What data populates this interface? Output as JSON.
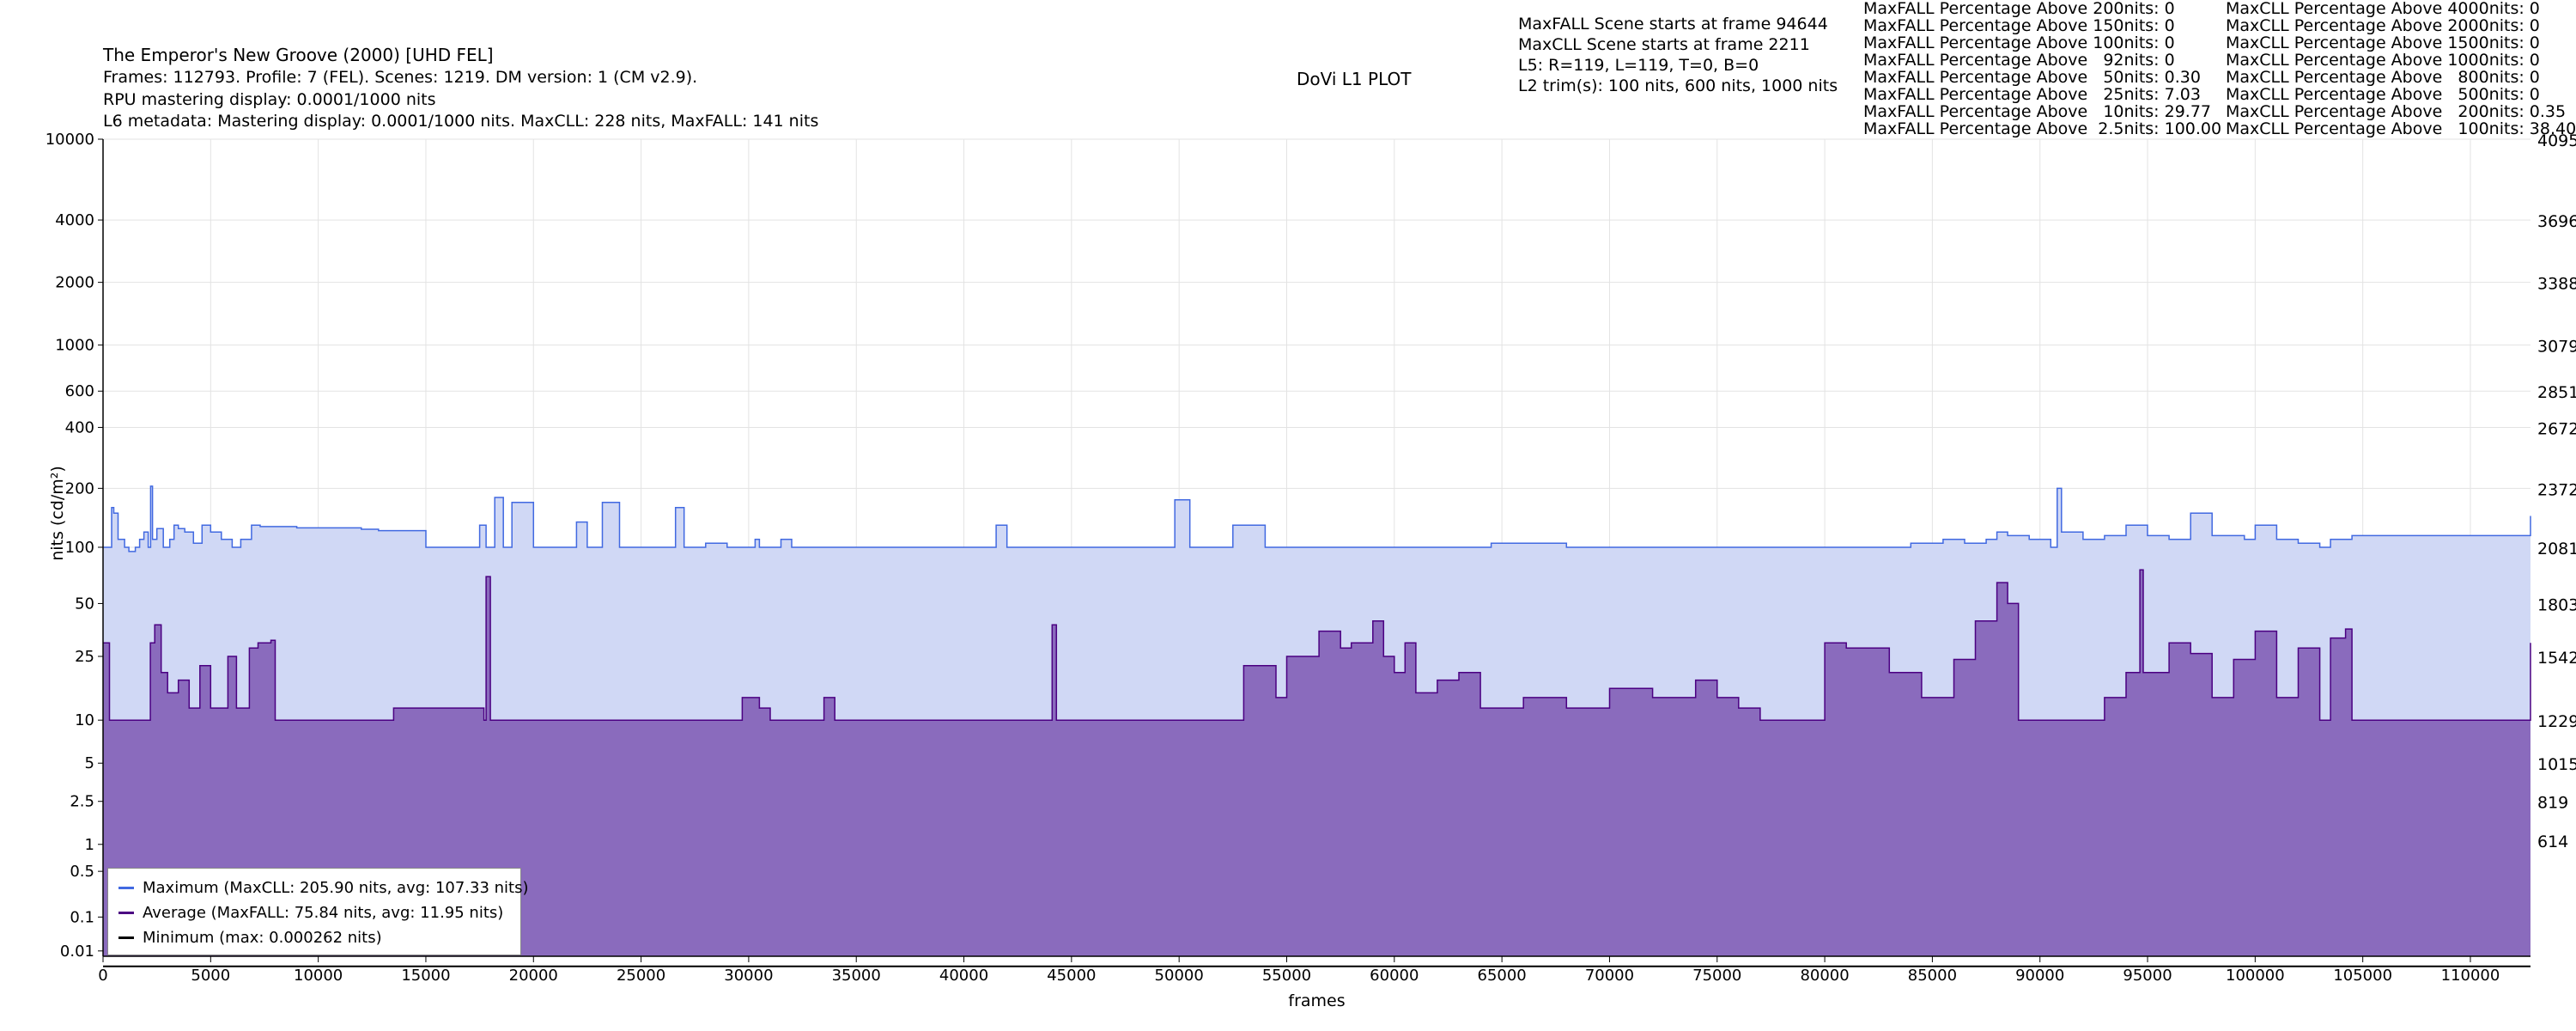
{
  "header": {
    "title": "The Emperor's New Groove (2000) [UHD FEL]",
    "info_line": "Frames: 112793. Profile: 7 (FEL). Scenes: 1219. DM version: 1 (CM v2.9).",
    "rpu_line": "RPU mastering display: 0.0001/1000 nits",
    "l6_line": "L6 metadata: Mastering display: 0.0001/1000 nits. MaxCLL: 228 nits, MaxFALL: 141 nits",
    "plot_name": "DoVi L1 PLOT",
    "scene_lines": [
      "MaxFALL Scene starts at frame 94644",
      "MaxCLL Scene starts at frame 2211",
      "L5: R=119, L=119, T=0, B=0",
      "L2 trim(s): 100 nits, 600 nits, 1000 nits"
    ],
    "maxfall_stats": [
      "MaxFALL Percentage Above 200nits: 0",
      "MaxFALL Percentage Above 150nits: 0",
      "MaxFALL Percentage Above 100nits: 0",
      "MaxFALL Percentage Above   92nits: 0",
      "MaxFALL Percentage Above   50nits: 0.30",
      "MaxFALL Percentage Above   25nits: 7.03",
      "MaxFALL Percentage Above   10nits: 29.77",
      "MaxFALL Percentage Above  2.5nits: 100.00"
    ],
    "maxcll_stats": [
      "MaxCLL Percentage Above 4000nits: 0",
      "MaxCLL Percentage Above 2000nits: 0",
      "MaxCLL Percentage Above 1500nits: 0",
      "MaxCLL Percentage Above 1000nits: 0",
      "MaxCLL Percentage Above   800nits: 0",
      "MaxCLL Percentage Above   500nits: 0",
      "MaxCLL Percentage Above   200nits: 0.35",
      "MaxCLL Percentage Above   100nits: 38.40"
    ]
  },
  "legend": {
    "maximum": "Maximum (MaxCLL: 205.90 nits, avg: 107.33 nits)",
    "average": "Average (MaxFALL: 75.84 nits, avg: 11.95 nits)",
    "minimum": "Minimum (max: 0.000262 nits)"
  },
  "colors": {
    "max_line": "#4169e1",
    "max_fill": "#d0d8f5",
    "avg_line": "#4b0082",
    "avg_fill": "#8a6bbd",
    "min_line": "#000000",
    "grid": "#e3e3e3"
  },
  "chart_data": {
    "type": "area",
    "title": "DoVi L1 PLOT",
    "xlabel": "frames",
    "ylabel": "nits (cd/m²)",
    "xlim": [
      0,
      112793
    ],
    "ylim": [
      0.005,
      10000
    ],
    "y_scale": "pq",
    "grid": true,
    "legend_position": "bottom-left",
    "x_ticks": [
      0,
      5000,
      10000,
      15000,
      20000,
      25000,
      30000,
      35000,
      40000,
      45000,
      50000,
      55000,
      60000,
      65000,
      70000,
      75000,
      80000,
      85000,
      90000,
      95000,
      100000,
      105000,
      110000
    ],
    "y_ticks": [
      0.01,
      0.1,
      0.5,
      1,
      2.5,
      5,
      10,
      25,
      50,
      100,
      200,
      400,
      600,
      1000,
      2000,
      4000,
      10000
    ],
    "y_ticks_right": [
      {
        "label": "4095",
        "nits": 10000
      },
      {
        "label": "3696",
        "nits": 4000
      },
      {
        "label": "3388",
        "nits": 2000
      },
      {
        "label": "3079",
        "nits": 1000
      },
      {
        "label": "2851",
        "nits": 600
      },
      {
        "label": "2672",
        "nits": 400
      },
      {
        "label": "2372",
        "nits": 200
      },
      {
        "label": "2081",
        "nits": 100
      },
      {
        "label": "1803",
        "nits": 50
      },
      {
        "label": "1542",
        "nits": 25
      },
      {
        "label": "1229",
        "nits": 10
      },
      {
        "label": "1015",
        "nits": 5
      },
      {
        "label": "819",
        "nits": 2.5
      },
      {
        "label": "614",
        "nits": 1.1
      }
    ],
    "series": [
      {
        "name": "Maximum",
        "x": [
          0,
          400,
          500,
          700,
          1000,
          1200,
          1500,
          1700,
          1900,
          2100,
          2211,
          2300,
          2500,
          2800,
          3100,
          3300,
          3500,
          3800,
          4200,
          4600,
          5000,
          5500,
          6000,
          6400,
          6900,
          7300,
          9000,
          12000,
          12800,
          15000,
          17000,
          17500,
          17800,
          18200,
          18600,
          19000,
          20000,
          21500,
          22000,
          22500,
          23200,
          24000,
          26000,
          26600,
          27000,
          28000,
          29000,
          30000,
          30300,
          30500,
          31500,
          32000,
          33000,
          34000,
          38000,
          41000,
          41500,
          42000,
          45000,
          48000,
          49500,
          49800,
          50500,
          52000,
          52500,
          54000,
          57000,
          60000,
          64000,
          64500,
          68000,
          71000,
          75000,
          78000,
          80000,
          82000,
          84000,
          85500,
          86500,
          87500,
          88000,
          88500,
          89500,
          90500,
          90800,
          91000,
          92000,
          93000,
          94000,
          95000,
          96000,
          97000,
          98000,
          99500,
          100000,
          101000,
          102000,
          103000,
          103500,
          104500,
          108000,
          112000,
          112793
        ],
        "values": [
          100,
          160,
          150,
          110,
          100,
          95,
          100,
          110,
          120,
          100,
          205,
          110,
          125,
          100,
          110,
          130,
          125,
          120,
          105,
          130,
          120,
          110,
          100,
          110,
          130,
          128,
          126,
          124,
          122,
          100,
          100,
          130,
          100,
          180,
          100,
          170,
          100,
          100,
          135,
          100,
          170,
          100,
          100,
          160,
          100,
          105,
          100,
          100,
          110,
          100,
          110,
          100,
          100,
          100,
          100,
          100,
          130,
          100,
          100,
          100,
          100,
          175,
          100,
          100,
          130,
          100,
          100,
          100,
          100,
          105,
          100,
          100,
          100,
          100,
          100,
          100,
          105,
          110,
          105,
          110,
          120,
          115,
          110,
          100,
          200,
          120,
          110,
          115,
          130,
          115,
          110,
          150,
          115,
          110,
          130,
          110,
          105,
          100,
          110,
          115,
          115,
          115,
          145
        ]
      },
      {
        "name": "Average",
        "x": [
          0,
          300,
          2000,
          2200,
          2400,
          2700,
          3000,
          3500,
          4000,
          4500,
          5000,
          5800,
          6200,
          6800,
          7200,
          7800,
          8000,
          11000,
          13500,
          17700,
          17800,
          18000,
          29500,
          29700,
          30500,
          31000,
          33000,
          33500,
          34000,
          44000,
          44100,
          44300,
          52500,
          53000,
          53500,
          54500,
          55000,
          56500,
          57500,
          58000,
          59000,
          59500,
          60000,
          60500,
          61000,
          62000,
          63000,
          64000,
          66000,
          68000,
          70000,
          72000,
          74000,
          75000,
          76000,
          77000,
          80000,
          81000,
          83000,
          84500,
          86000,
          87000,
          88000,
          88500,
          89000,
          90000,
          93000,
          94000,
          94644,
          94800,
          96000,
          97000,
          98000,
          99000,
          100000,
          101000,
          102000,
          103000,
          103500,
          104200,
          104500,
          106000,
          112600,
          112793
        ],
        "values": [
          30,
          10,
          10,
          30,
          38,
          20,
          15,
          18,
          12,
          22,
          12,
          25,
          12,
          28,
          30,
          31,
          10,
          10,
          12,
          10,
          70,
          10,
          10,
          14,
          12,
          10,
          10,
          14,
          10,
          10,
          38,
          10,
          10,
          22,
          22,
          14,
          25,
          35,
          28,
          30,
          40,
          25,
          20,
          30,
          15,
          18,
          20,
          12,
          14,
          12,
          16,
          14,
          18,
          14,
          12,
          10,
          30,
          28,
          20,
          14,
          24,
          40,
          65,
          50,
          10,
          10,
          14,
          20,
          76,
          20,
          30,
          26,
          14,
          24,
          35,
          14,
          28,
          10,
          32,
          36,
          10,
          10,
          10,
          30
        ]
      },
      {
        "name": "Minimum",
        "x": [
          0,
          112793
        ],
        "values": [
          0.000262,
          0.000262
        ]
      }
    ]
  }
}
